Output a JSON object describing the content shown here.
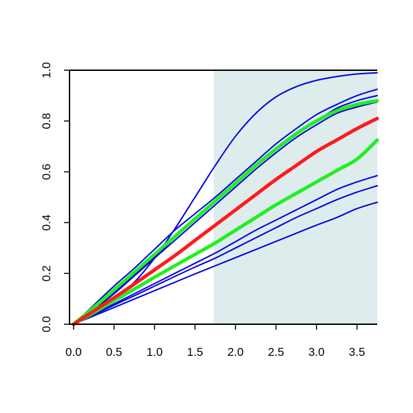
{
  "chart_data": {
    "type": "line",
    "title": "",
    "xlabel": "",
    "ylabel": "",
    "xlim": [
      -0.05,
      3.75
    ],
    "ylim": [
      0.0,
      1.0
    ],
    "grid": false,
    "legend": "none",
    "shaded_region": {
      "x_from": 1.73,
      "x_to": 3.75,
      "color": "#deeced"
    },
    "x_ticks": [
      "0.0",
      "0.5",
      "1.0",
      "1.5",
      "2.0",
      "2.5",
      "3.0",
      "3.5"
    ],
    "y_ticks": [
      "0.0",
      "0.2",
      "0.4",
      "0.6",
      "0.8",
      "1.0"
    ],
    "x": [
      0,
      0.25,
      0.5,
      0.75,
      1.0,
      1.25,
      1.5,
      1.75,
      2.0,
      2.25,
      2.5,
      2.75,
      3.0,
      3.25,
      3.5,
      3.75
    ],
    "series": [
      {
        "color": "#0000dd",
        "width": 2,
        "values": [
          0,
          0.042,
          0.095,
          0.165,
          0.26,
          0.375,
          0.5,
          0.625,
          0.74,
          0.83,
          0.895,
          0.935,
          0.96,
          0.975,
          0.985,
          0.99
        ]
      },
      {
        "color": "#0000dd",
        "width": 2,
        "values": [
          0,
          0.075,
          0.15,
          0.22,
          0.295,
          0.37,
          0.435,
          0.5,
          0.57,
          0.64,
          0.71,
          0.77,
          0.825,
          0.865,
          0.9,
          0.925
        ]
      },
      {
        "color": "#0000dd",
        "width": 2,
        "values": [
          0,
          0.06,
          0.125,
          0.195,
          0.265,
          0.34,
          0.41,
          0.48,
          0.55,
          0.62,
          0.685,
          0.745,
          0.8,
          0.85,
          0.88,
          0.9
        ]
      },
      {
        "color": "#0000dd",
        "width": 2,
        "values": [
          0,
          0.058,
          0.12,
          0.19,
          0.26,
          0.33,
          0.4,
          0.47,
          0.54,
          0.61,
          0.675,
          0.735,
          0.785,
          0.83,
          0.855,
          0.875
        ]
      },
      {
        "color": "#0000dd",
        "width": 2,
        "values": [
          0,
          0.04,
          0.08,
          0.12,
          0.16,
          0.2,
          0.24,
          0.28,
          0.325,
          0.37,
          0.41,
          0.45,
          0.49,
          0.53,
          0.56,
          0.585
        ]
      },
      {
        "color": "#0000dd",
        "width": 2,
        "values": [
          0,
          0.037,
          0.075,
          0.112,
          0.15,
          0.188,
          0.225,
          0.26,
          0.3,
          0.34,
          0.38,
          0.42,
          0.455,
          0.49,
          0.52,
          0.545
        ]
      },
      {
        "color": "#0000dd",
        "width": 2,
        "values": [
          0,
          0.033,
          0.066,
          0.099,
          0.132,
          0.165,
          0.198,
          0.23,
          0.262,
          0.294,
          0.326,
          0.358,
          0.39,
          0.42,
          0.455,
          0.48
        ]
      },
      {
        "color": "#22ee22",
        "width": 5,
        "values": [
          0,
          0.066,
          0.135,
          0.205,
          0.275,
          0.345,
          0.415,
          0.485,
          0.555,
          0.625,
          0.69,
          0.75,
          0.8,
          0.84,
          0.865,
          0.88
        ]
      },
      {
        "color": "#22ee22",
        "width": 5,
        "values": [
          0,
          0.046,
          0.092,
          0.138,
          0.185,
          0.23,
          0.275,
          0.32,
          0.37,
          0.42,
          0.47,
          0.515,
          0.56,
          0.605,
          0.65,
          0.725
        ]
      },
      {
        "color": "#ff1a1a",
        "width": 5,
        "values": [
          0,
          0.052,
          0.104,
          0.158,
          0.214,
          0.27,
          0.33,
          0.39,
          0.45,
          0.51,
          0.57,
          0.625,
          0.68,
          0.725,
          0.77,
          0.81
        ]
      }
    ]
  }
}
